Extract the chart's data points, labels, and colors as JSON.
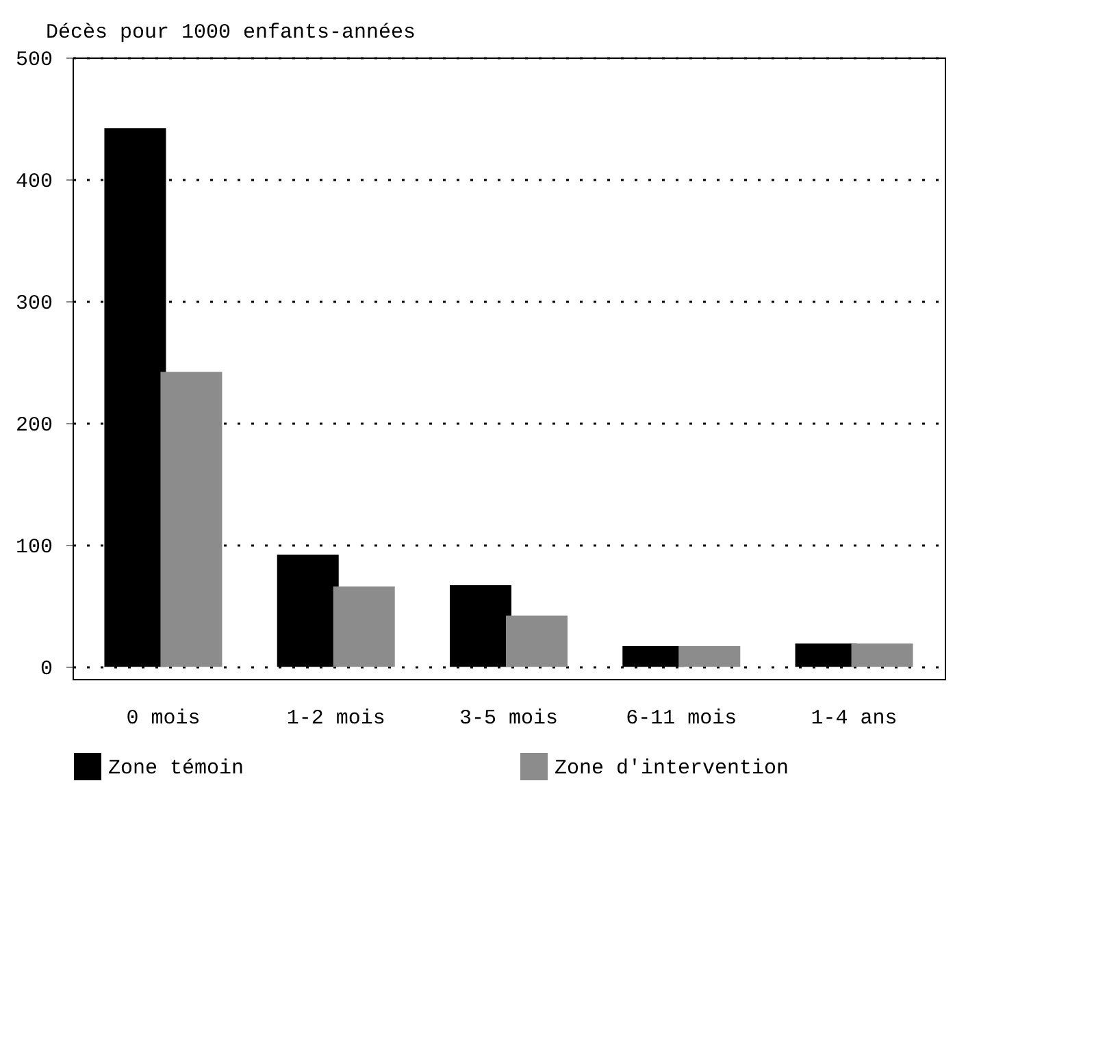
{
  "chart_data": {
    "type": "bar",
    "ylabel": "Décès pour 1000 enfants-années",
    "categories": [
      "0 mois",
      "1-2 mois",
      "3-5 mois",
      "6-11 mois",
      "1-4 ans"
    ],
    "series": [
      {
        "name": "Zone témoin",
        "color": "#000000",
        "values": [
          442,
          92,
          67,
          17,
          19
        ]
      },
      {
        "name": "Zone d'intervention",
        "color": "#8c8c8c",
        "values": [
          242,
          66,
          42,
          17,
          19
        ]
      }
    ],
    "ylim": [
      -10,
      500
    ],
    "yticks": [
      0,
      100,
      200,
      300,
      400,
      500
    ],
    "grid": "y",
    "legend": "bottom"
  }
}
